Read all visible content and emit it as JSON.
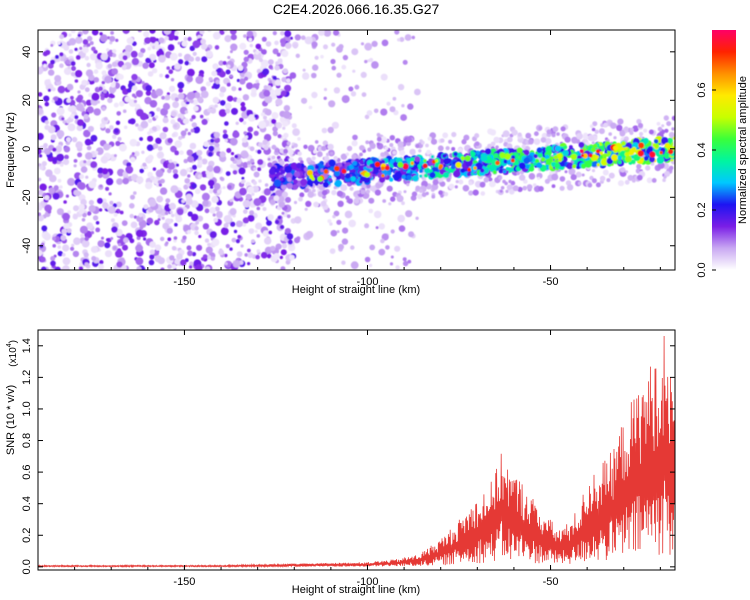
{
  "figure_title": "C2E4.2026.066.16.35.G27",
  "chart_data": [
    {
      "type": "heatmap",
      "title": "C2E4.2026.066.16.35.G27",
      "xlabel": "Height of straight line (km)",
      "ylabel": "Frequency (Hz)",
      "xlim": [
        -190,
        -16
      ],
      "ylim": [
        -50,
        49
      ],
      "xticks": [
        -150,
        -100,
        -50
      ],
      "yticks": [
        40,
        20,
        0,
        -20,
        -40
      ],
      "colorbar": {
        "label": "Normalized spectral amplitude",
        "range": [
          0,
          0.8
        ],
        "ticks": [
          0.0,
          0.2,
          0.4,
          0.6
        ],
        "colors": [
          "#ffffff",
          "#c9a8f2",
          "#7a1ee6",
          "#1d14f2",
          "#00c8ff",
          "#00f5a0",
          "#3aff3a",
          "#c8ff00",
          "#ffea00",
          "#ff9000",
          "#ff2200",
          "#ff0066"
        ]
      },
      "track": {
        "description": "signal ridge",
        "x_range": [
          -126,
          -16
        ],
        "freq_start": -12,
        "freq_end": 0,
        "amp_start": 0.22,
        "amp_end": 0.55
      },
      "noise_regions": [
        {
          "x_range": [
            -190,
            -120
          ],
          "level": "dense"
        },
        {
          "x_range": [
            -120,
            -86
          ],
          "level": "sparse"
        }
      ]
    },
    {
      "type": "line",
      "title": "",
      "xlabel": "Height of straight line (km)",
      "ylabel": "SNR (10 * v/v)",
      "y_multiplier": "(x10",
      "y_multiplier_exp": "4",
      "y_multiplier_close": ")",
      "xlim": [
        -190,
        -16
      ],
      "ylim": [
        -0.02,
        1.5
      ],
      "xticks": [
        -150,
        -100,
        -50
      ],
      "yticks": [
        0.0,
        0.2,
        0.4,
        0.6,
        0.8,
        1.0,
        1.2,
        1.4
      ],
      "color": "#e53935",
      "series": [
        {
          "name": "SNR",
          "envelope": [
            [
              -190,
              0.01
            ],
            [
              -140,
              0.01
            ],
            [
              -120,
              0.02
            ],
            [
              -100,
              0.03
            ],
            [
              -92,
              0.05
            ],
            [
              -86,
              0.08
            ],
            [
              -80,
              0.18
            ],
            [
              -75,
              0.3
            ],
            [
              -70,
              0.45
            ],
            [
              -66,
              0.55
            ],
            [
              -63,
              0.75
            ],
            [
              -61,
              0.62
            ],
            [
              -58,
              0.55
            ],
            [
              -55,
              0.45
            ],
            [
              -52,
              0.35
            ],
            [
              -48,
              0.25
            ],
            [
              -45,
              0.28
            ],
            [
              -42,
              0.4
            ],
            [
              -40,
              0.55
            ],
            [
              -37,
              0.65
            ],
            [
              -34,
              0.7
            ],
            [
              -30,
              0.95
            ],
            [
              -27,
              1.1
            ],
            [
              -24,
              1.25
            ],
            [
              -21,
              1.35
            ],
            [
              -19,
              1.5
            ],
            [
              -17,
              1.2
            ],
            [
              -16,
              1.0
            ]
          ]
        }
      ]
    }
  ]
}
